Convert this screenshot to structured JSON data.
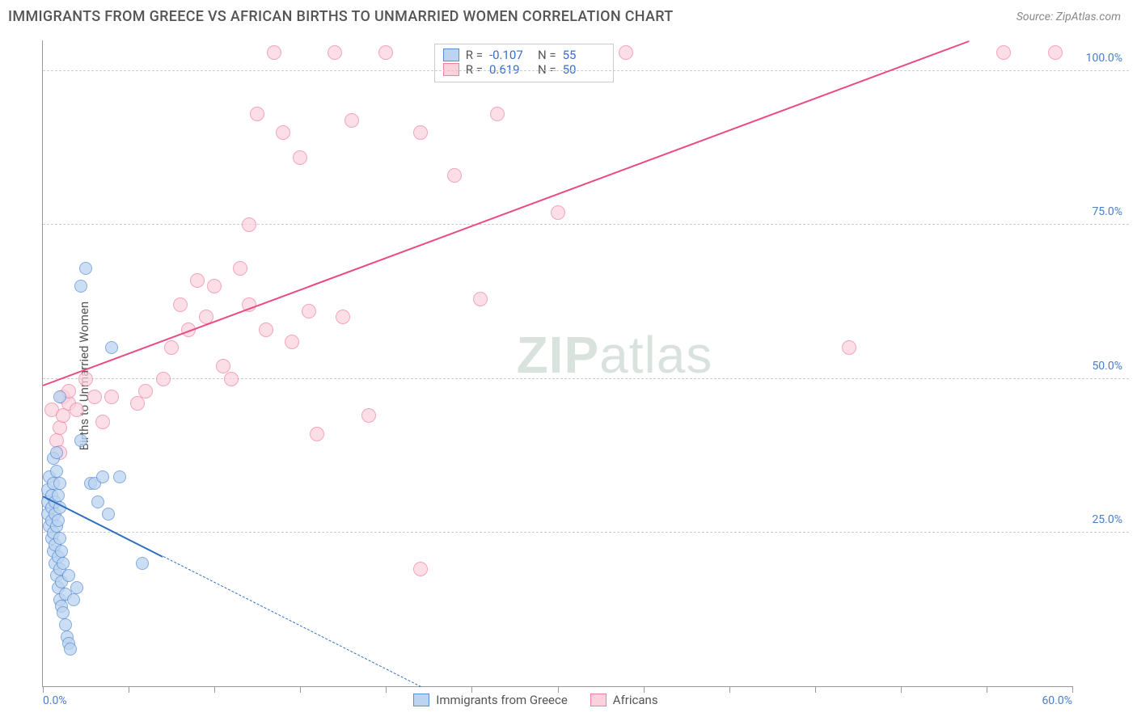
{
  "header": {
    "title": "IMMIGRANTS FROM GREECE VS AFRICAN BIRTHS TO UNMARRIED WOMEN CORRELATION CHART",
    "source_prefix": "Source: ",
    "source_name": "ZipAtlas.com"
  },
  "watermark": {
    "part1": "ZIP",
    "part2": "atlas"
  },
  "chart": {
    "type": "scatter",
    "ylabel": "Births to Unmarried Women",
    "xlim": [
      0,
      60
    ],
    "ylim": [
      0,
      105
    ],
    "xticks": [
      0,
      5,
      10,
      15,
      20,
      25,
      30,
      35,
      40,
      45,
      50,
      55,
      60
    ],
    "xtick_labels": {
      "0": "0.0%",
      "60": "60.0%"
    },
    "yticks": [
      25,
      50,
      75,
      100
    ],
    "ytick_labels": {
      "25": "25.0%",
      "50": "50.0%",
      "75": "75.0%",
      "100": "100.0%"
    },
    "grid_color": "#cccccc",
    "axis_color": "#999999",
    "background_color": "#ffffff",
    "tick_label_color": "#4a7ec9",
    "series": {
      "blue": {
        "label": "Immigrants from Greece",
        "fill": "#bcd4f0",
        "stroke": "#5a8fd6",
        "marker_radius": 8,
        "opacity": 0.75,
        "R": "-0.107",
        "N": "55",
        "trend": {
          "x1": 0,
          "y1": 31,
          "x_solid_end": 7,
          "x2": 22,
          "y2": 0,
          "color": "#2f6fc0"
        },
        "points": [
          [
            0.3,
            28
          ],
          [
            0.3,
            30
          ],
          [
            0.3,
            32
          ],
          [
            0.4,
            26
          ],
          [
            0.4,
            34
          ],
          [
            0.5,
            24
          ],
          [
            0.5,
            27
          ],
          [
            0.5,
            29
          ],
          [
            0.5,
            31
          ],
          [
            0.6,
            22
          ],
          [
            0.6,
            25
          ],
          [
            0.6,
            33
          ],
          [
            0.6,
            37
          ],
          [
            0.7,
            20
          ],
          [
            0.7,
            23
          ],
          [
            0.7,
            28
          ],
          [
            0.7,
            30
          ],
          [
            0.8,
            18
          ],
          [
            0.8,
            26
          ],
          [
            0.8,
            35
          ],
          [
            0.8,
            38
          ],
          [
            0.9,
            16
          ],
          [
            0.9,
            21
          ],
          [
            0.9,
            27
          ],
          [
            0.9,
            31
          ],
          [
            1.0,
            14
          ],
          [
            1.0,
            19
          ],
          [
            1.0,
            24
          ],
          [
            1.0,
            29
          ],
          [
            1.0,
            33
          ],
          [
            1.1,
            13
          ],
          [
            1.1,
            17
          ],
          [
            1.1,
            22
          ],
          [
            1.2,
            12
          ],
          [
            1.2,
            20
          ],
          [
            1.3,
            10
          ],
          [
            1.3,
            15
          ],
          [
            1.4,
            8
          ],
          [
            1.5,
            7
          ],
          [
            1.5,
            18
          ],
          [
            1.6,
            6
          ],
          [
            1.8,
            14
          ],
          [
            2.0,
            16
          ],
          [
            2.2,
            40
          ],
          [
            2.2,
            65
          ],
          [
            2.5,
            68
          ],
          [
            2.8,
            33
          ],
          [
            3.0,
            33
          ],
          [
            3.2,
            30
          ],
          [
            3.5,
            34
          ],
          [
            3.8,
            28
          ],
          [
            4.0,
            55
          ],
          [
            4.5,
            34
          ],
          [
            5.8,
            20
          ],
          [
            1.0,
            47
          ]
        ]
      },
      "pink": {
        "label": "Africans",
        "fill": "#fbd1dc",
        "stroke": "#ef7fa3",
        "marker_radius": 9,
        "opacity": 0.7,
        "R": "0.619",
        "N": "50",
        "trend": {
          "x1": 0,
          "y1": 49,
          "x2": 54.0,
          "y2": 105,
          "color": "#e84b84"
        },
        "points": [
          [
            0.5,
            45
          ],
          [
            0.8,
            40
          ],
          [
            1.0,
            38
          ],
          [
            1.0,
            42
          ],
          [
            1.2,
            44
          ],
          [
            1.2,
            47
          ],
          [
            1.5,
            46
          ],
          [
            1.5,
            48
          ],
          [
            2.0,
            45
          ],
          [
            2.5,
            50
          ],
          [
            3.0,
            47
          ],
          [
            3.5,
            43
          ],
          [
            4.0,
            47
          ],
          [
            5.5,
            46
          ],
          [
            6.0,
            48
          ],
          [
            7.0,
            50
          ],
          [
            7.5,
            55
          ],
          [
            8.0,
            62
          ],
          [
            8.5,
            58
          ],
          [
            9.0,
            66
          ],
          [
            9.5,
            60
          ],
          [
            10.0,
            65
          ],
          [
            10.5,
            52
          ],
          [
            11.0,
            50
          ],
          [
            11.5,
            68
          ],
          [
            12.0,
            75
          ],
          [
            12.0,
            62
          ],
          [
            12.5,
            93
          ],
          [
            13.0,
            58
          ],
          [
            13.5,
            103
          ],
          [
            14.0,
            90
          ],
          [
            14.5,
            56
          ],
          [
            15.0,
            86
          ],
          [
            15.5,
            61
          ],
          [
            16.0,
            41
          ],
          [
            17.0,
            103
          ],
          [
            17.5,
            60
          ],
          [
            18.0,
            92
          ],
          [
            19.0,
            44
          ],
          [
            20.0,
            103
          ],
          [
            22.0,
            90
          ],
          [
            22.0,
            19
          ],
          [
            24.0,
            83
          ],
          [
            25.5,
            63
          ],
          [
            26.5,
            93
          ],
          [
            30.0,
            77
          ],
          [
            34.0,
            103
          ],
          [
            47.0,
            55
          ],
          [
            56.0,
            103
          ],
          [
            59.0,
            103
          ]
        ]
      }
    },
    "legend_top": {
      "label_R": "R =",
      "label_N": "N ="
    }
  }
}
